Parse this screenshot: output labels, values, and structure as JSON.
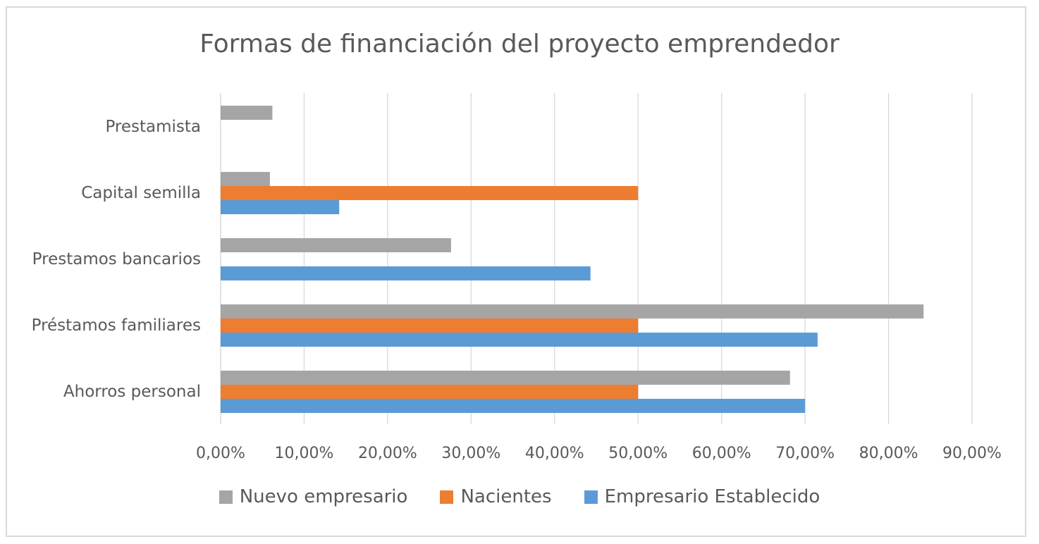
{
  "chart_data": {
    "type": "bar",
    "orientation": "horizontal",
    "title": "Formas de financiación del proyecto emprendedor",
    "xlabel": "",
    "ylabel": "",
    "xlim": [
      0,
      0.9
    ],
    "x_ticks": [
      "0,00%",
      "10,00%",
      "20,00%",
      "30,00%",
      "40,00%",
      "50,00%",
      "60,00%",
      "70,00%",
      "80,00%",
      "90,00%"
    ],
    "grid": true,
    "legend_position": "bottom",
    "categories": [
      "Prestamista",
      "Capital semilla",
      "Prestamos bancarios",
      "Préstamos familiares",
      "Ahorros personal"
    ],
    "series": [
      {
        "name": "Nuevo empresario",
        "color": "#a5a5a5",
        "values": [
          0.062,
          0.059,
          0.276,
          0.842,
          0.682
        ]
      },
      {
        "name": "Nacientes",
        "color": "#ed7d31",
        "values": [
          0,
          0.5,
          0,
          0.5,
          0.5
        ]
      },
      {
        "name": "Empresario Establecido",
        "color": "#5b9bd5",
        "values": [
          0,
          0.142,
          0.443,
          0.715,
          0.7
        ]
      }
    ]
  }
}
